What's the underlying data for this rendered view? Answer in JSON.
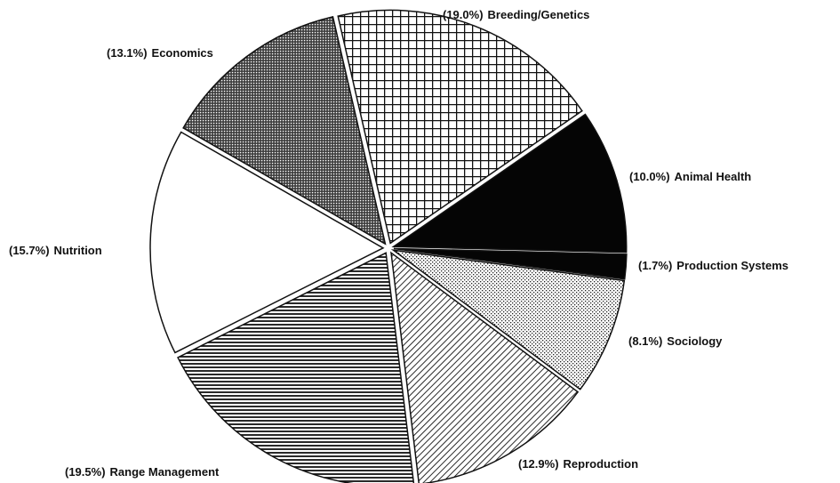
{
  "chart_data": {
    "type": "pie",
    "categories": [
      "Breeding/Genetics",
      "Animal Health",
      "Production Systems",
      "Sociology",
      "Reproduction",
      "Range Management",
      "Nutrition",
      "Economics"
    ],
    "values": [
      19.0,
      10.0,
      1.7,
      8.1,
      12.9,
      19.5,
      15.7,
      13.1
    ],
    "value_labels": [
      "(19.0%)",
      "(10.0%)",
      "(1.7%)",
      "(8.1%)",
      "(12.9%)",
      "(19.5%)",
      "(15.7%)",
      "(13.1%)"
    ],
    "patterns": [
      "crosshatch",
      "solid",
      "solid",
      "light-dots",
      "diagonal",
      "horizontal",
      "none",
      "dense-dots"
    ]
  }
}
